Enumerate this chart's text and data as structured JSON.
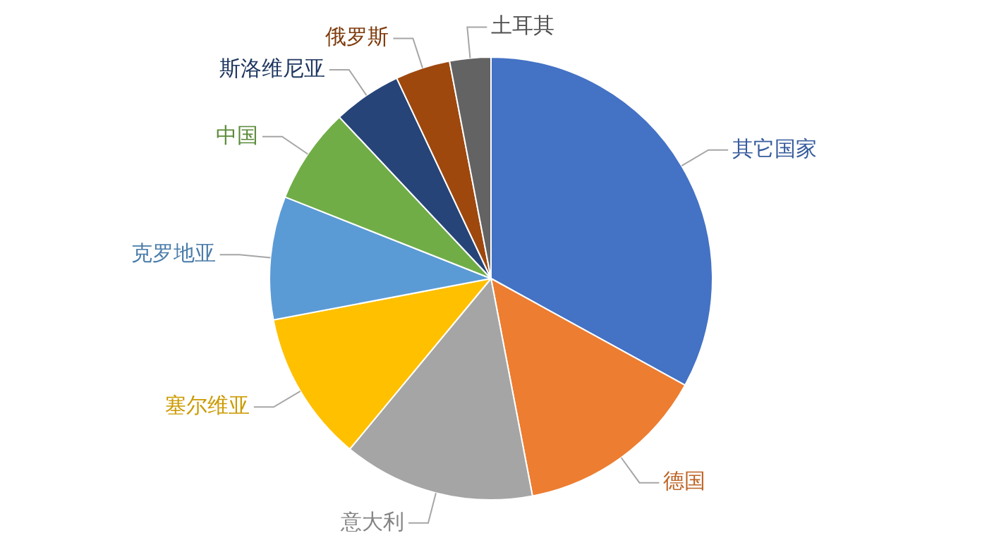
{
  "chart_data": {
    "type": "pie",
    "categories": [
      "其它国家",
      "德国",
      "意大利",
      "塞尔维亚",
      "克罗地亚",
      "中国",
      "斯洛维尼亚",
      "俄罗斯",
      "土耳其"
    ],
    "values": [
      33,
      14,
      14,
      11,
      9,
      7,
      5,
      4,
      3
    ],
    "colors": [
      "#4472c4",
      "#ed7d31",
      "#a5a5a5",
      "#ffc000",
      "#5b9bd5",
      "#70ad47",
      "#264478",
      "#9e480e",
      "#636363"
    ],
    "legend": false
  }
}
